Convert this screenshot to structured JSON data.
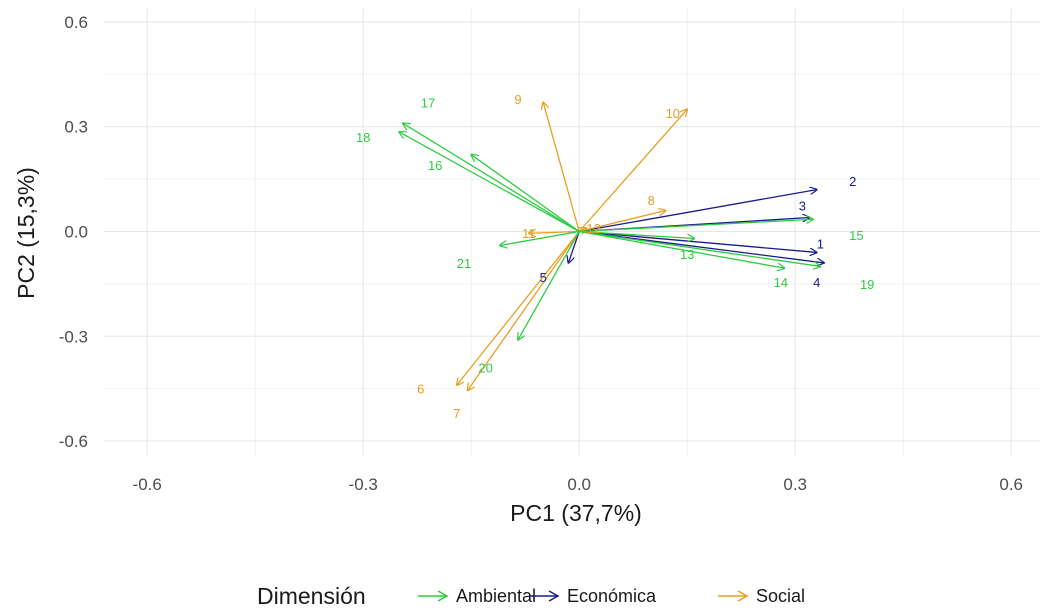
{
  "chart_data": {
    "type": "biplot",
    "xlabel": "PC1 (37,7%)",
    "ylabel": "PC2 (15,3%)",
    "xlim": [
      -0.66,
      0.64
    ],
    "ylim": [
      -0.64,
      0.64
    ],
    "x_ticks": [
      -0.6,
      -0.3,
      0.0,
      0.3,
      0.6
    ],
    "x_tick_labels": [
      "-0.6",
      "-0.3",
      "0.0",
      "0.3",
      "0.6"
    ],
    "y_ticks": [
      0.6,
      0.3,
      0.0,
      -0.3,
      -0.6
    ],
    "y_tick_labels": [
      "0.6",
      "0.3",
      "0.0",
      "-0.3",
      "-0.6"
    ],
    "grid": true,
    "legend": {
      "title": "Dimensión",
      "position": "bottom",
      "items": [
        {
          "name": "Ambiental",
          "color": "#2ecc40"
        },
        {
          "name": "Económica",
          "color": "#1a1a8c"
        },
        {
          "name": "Social",
          "color": "#e6a020"
        }
      ]
    },
    "colors": {
      "Ambiental": "#2ecc40",
      "Económica": "#1a1a8c",
      "Social": "#e6a020"
    },
    "vectors": [
      {
        "label": "1",
        "group": "Económica",
        "x": 0.33,
        "y": -0.06,
        "lx": 0.335,
        "ly": -0.035
      },
      {
        "label": "2",
        "group": "Económica",
        "x": 0.33,
        "y": 0.12,
        "lx": 0.38,
        "ly": 0.145
      },
      {
        "label": "3",
        "group": "Económica",
        "x": 0.32,
        "y": 0.04,
        "lx": 0.31,
        "ly": 0.075
      },
      {
        "label": "4",
        "group": "Económica",
        "x": 0.34,
        "y": -0.09,
        "lx": 0.33,
        "ly": -0.145
      },
      {
        "label": "5",
        "group": "Económica",
        "x": -0.015,
        "y": -0.09,
        "lx": -0.05,
        "ly": -0.13
      },
      {
        "label": "6",
        "group": "Social",
        "x": -0.17,
        "y": -0.44,
        "lx": -0.22,
        "ly": -0.45
      },
      {
        "label": "7",
        "group": "Social",
        "x": -0.155,
        "y": -0.455,
        "lx": -0.17,
        "ly": -0.52
      },
      {
        "label": "8",
        "group": "Social",
        "x": 0.12,
        "y": 0.06,
        "lx": 0.1,
        "ly": 0.09
      },
      {
        "label": "9",
        "group": "Social",
        "x": -0.05,
        "y": 0.37,
        "lx": -0.085,
        "ly": 0.38
      },
      {
        "label": "10",
        "group": "Social",
        "x": 0.15,
        "y": 0.35,
        "lx": 0.13,
        "ly": 0.34
      },
      {
        "label": "11",
        "group": "Social",
        "x": -0.07,
        "y": -0.005,
        "lx": -0.07,
        "ly": -0.005
      },
      {
        "label": "12",
        "group": "Social",
        "x": 0.01,
        "y": 0.01,
        "lx": 0.02,
        "ly": 0.01
      },
      {
        "label": "13",
        "group": "Ambiental",
        "x": 0.16,
        "y": -0.02,
        "lx": 0.15,
        "ly": -0.065
      },
      {
        "label": "14",
        "group": "Ambiental",
        "x": 0.285,
        "y": -0.105,
        "lx": 0.28,
        "ly": -0.145
      },
      {
        "label": "15",
        "group": "Ambiental",
        "x": 0.325,
        "y": 0.035,
        "lx": 0.385,
        "ly": -0.01
      },
      {
        "label": "16",
        "group": "Ambiental",
        "x": -0.15,
        "y": 0.22,
        "lx": -0.2,
        "ly": 0.19
      },
      {
        "label": "17",
        "group": "Ambiental",
        "x": -0.245,
        "y": 0.31,
        "lx": -0.21,
        "ly": 0.37
      },
      {
        "label": "18",
        "group": "Ambiental",
        "x": -0.25,
        "y": 0.285,
        "lx": -0.3,
        "ly": 0.27
      },
      {
        "label": "19",
        "group": "Ambiental",
        "x": 0.335,
        "y": -0.1,
        "lx": 0.4,
        "ly": -0.15
      },
      {
        "label": "20",
        "group": "Ambiental",
        "x": -0.085,
        "y": -0.31,
        "lx": -0.13,
        "ly": -0.39
      },
      {
        "label": "21",
        "group": "Ambiental",
        "x": -0.11,
        "y": -0.04,
        "lx": -0.16,
        "ly": -0.09
      }
    ]
  }
}
